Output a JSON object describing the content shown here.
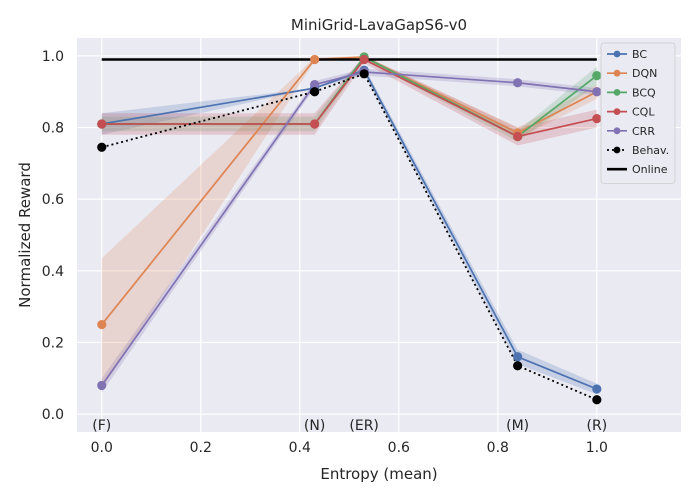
{
  "chart_data": {
    "type": "line",
    "title": "MiniGrid-LavaGapS6-v0",
    "xlabel": "Entropy (mean)",
    "ylabel": "Normalized Reward",
    "xlim": [
      -0.05,
      1.17
    ],
    "ylim": [
      -0.05,
      1.05
    ],
    "xticks": [
      0.0,
      0.2,
      0.4,
      0.6,
      0.8,
      1.0
    ],
    "xtick_labels": [
      "0.0",
      "0.2",
      "0.4",
      "0.6",
      "0.8",
      "1.0"
    ],
    "yticks": [
      0.0,
      0.2,
      0.4,
      0.6,
      0.8,
      1.0
    ],
    "ytick_labels": [
      "0.0",
      "0.2",
      "0.4",
      "0.6",
      "0.8",
      "1.0"
    ],
    "grid": true,
    "legend_position": "top-right",
    "x": [
      0.0,
      0.43,
      0.53,
      0.84,
      1.0
    ],
    "annotations": [
      {
        "text": "(F)",
        "x": 0.0,
        "y": -0.03
      },
      {
        "text": "(N)",
        "x": 0.43,
        "y": -0.03
      },
      {
        "text": "(ER)",
        "x": 0.53,
        "y": -0.03
      },
      {
        "text": "(M)",
        "x": 0.84,
        "y": -0.03
      },
      {
        "text": "(R)",
        "x": 1.0,
        "y": -0.03
      }
    ],
    "series": [
      {
        "name": "BC",
        "color": "#4c72b0",
        "style": "solid",
        "marker": true,
        "values": [
          0.81,
          0.91,
          0.96,
          0.16,
          0.07
        ],
        "lower": [
          0.78,
          0.91,
          0.95,
          0.14,
          0.055
        ],
        "upper": [
          0.84,
          0.91,
          0.97,
          0.18,
          0.085
        ]
      },
      {
        "name": "DQN",
        "color": "#dd8452",
        "style": "solid",
        "marker": true,
        "values": [
          0.25,
          0.99,
          0.997,
          0.785,
          0.9
        ],
        "lower": [
          0.07,
          0.985,
          0.99,
          0.77,
          0.88
        ],
        "upper": [
          0.435,
          0.995,
          1.0,
          0.8,
          0.92
        ]
      },
      {
        "name": "BCQ",
        "color": "#55a868",
        "style": "solid",
        "marker": true,
        "values": [
          0.81,
          0.81,
          0.997,
          0.775,
          0.945
        ],
        "lower": [
          0.79,
          0.79,
          0.99,
          0.76,
          0.92
        ],
        "upper": [
          0.83,
          0.83,
          1.0,
          0.79,
          0.97
        ]
      },
      {
        "name": "CQL",
        "color": "#c44e52",
        "style": "solid",
        "marker": true,
        "values": [
          0.81,
          0.81,
          0.99,
          0.775,
          0.825
        ],
        "lower": [
          0.78,
          0.78,
          0.98,
          0.75,
          0.8
        ],
        "upper": [
          0.84,
          0.84,
          1.0,
          0.8,
          0.85
        ]
      },
      {
        "name": "CRR",
        "color": "#8172b3",
        "style": "solid",
        "marker": true,
        "values": [
          0.08,
          0.92,
          0.955,
          0.925,
          0.9
        ],
        "lower": [
          0.06,
          0.91,
          0.945,
          0.915,
          0.89
        ],
        "upper": [
          0.1,
          0.93,
          0.965,
          0.935,
          0.91
        ]
      },
      {
        "name": "Behav.",
        "color": "#000000",
        "style": "dotted",
        "marker": true,
        "values": [
          0.745,
          0.9,
          0.95,
          0.135,
          0.04
        ]
      },
      {
        "name": "Online",
        "color": "#000000",
        "style": "solid",
        "marker": false,
        "x": [
          0.0,
          1.0
        ],
        "values": [
          0.99,
          0.99
        ]
      }
    ]
  }
}
